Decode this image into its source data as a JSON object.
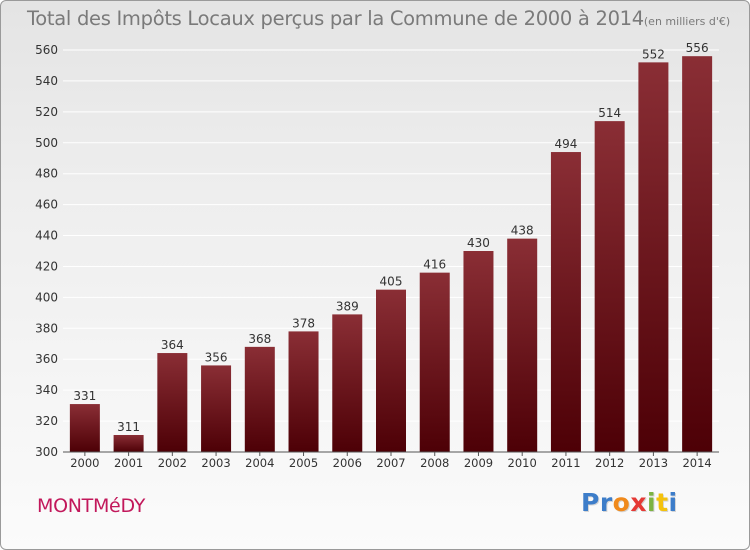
{
  "title": "Total des Impôts Locaux perçus par la Commune de 2000 à 2014",
  "title_unit": "(en milliers d'€)",
  "commune": "MONTMéDY",
  "logo": {
    "text": "Proxiti",
    "letter_colors": [
      "#3d7dc9",
      "#3d7dc9",
      "#f08a1c",
      "#e53935",
      "#7cb342",
      "#f4c20d",
      "#3d7dc9"
    ]
  },
  "colors": {
    "bar_top": "#8a2e35",
    "bar_bottom": "#4d0006",
    "grid": "#ffffff",
    "axis_text": "#333333"
  },
  "chart_data": {
    "type": "bar",
    "title": "Total des Impôts Locaux perçus par la Commune de 2000 à 2014",
    "xlabel": "",
    "ylabel": "",
    "categories": [
      "2000",
      "2001",
      "2002",
      "2003",
      "2004",
      "2005",
      "2006",
      "2007",
      "2008",
      "2009",
      "2010",
      "2011",
      "2012",
      "2013",
      "2014"
    ],
    "values": [
      331,
      311,
      364,
      356,
      368,
      378,
      389,
      405,
      416,
      430,
      438,
      494,
      514,
      552,
      556
    ],
    "ylim": [
      300,
      560
    ],
    "yticks": [
      300,
      320,
      340,
      360,
      380,
      400,
      420,
      440,
      460,
      480,
      500,
      520,
      540,
      560
    ],
    "grid": true
  }
}
